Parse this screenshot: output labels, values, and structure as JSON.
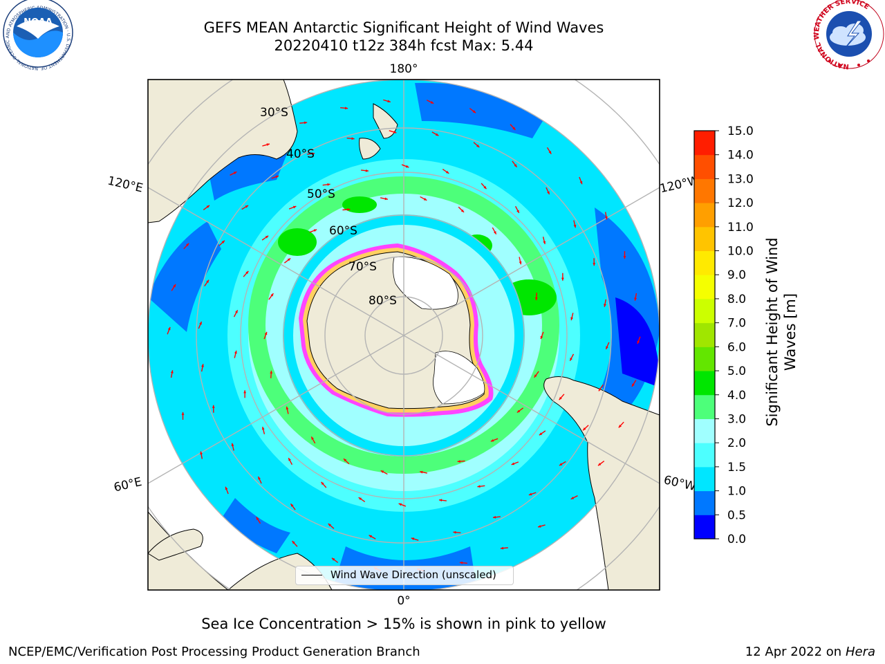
{
  "header": {
    "title_line1": "GEFS MEAN Antarctic Significant Height of Wind Waves",
    "title_line2": "20220410 t12z 384h fcst   Max: 5.44"
  },
  "logos": {
    "noaa_text": "NOAA",
    "noaa_ring_text": "NATIONAL OCEANIC AND ATMOSPHERIC ADMINISTRATION · U.S. DEPARTMENT OF COMMERCE",
    "nws_ring_text": "NATIONAL WEATHER SERVICE"
  },
  "map": {
    "projection": "south-polar-stereographic",
    "longitude_labels": {
      "top": "180°",
      "bottom": "0°",
      "upper_left": "120°E",
      "upper_right": "120°W",
      "lower_left": "60°E",
      "lower_right": "60°W"
    },
    "latitude_labels": [
      "30°S",
      "40°S",
      "50°S",
      "60°S",
      "70°S",
      "80°S"
    ],
    "legend_label": "Wind Wave Direction (unscaled)",
    "colors": {
      "land": "#efebd8",
      "sea_ice_white": "#ffffff",
      "sea_ice_edge": "#ff44ff",
      "arrow": "#ff0000",
      "gridline": "#b4b4b4"
    }
  },
  "colorbar": {
    "label": "Significant Height of Wind Waves [m]",
    "ticks": [
      "0.0",
      "0.5",
      "1.0",
      "1.5",
      "2.0",
      "3.0",
      "4.0",
      "5.0",
      "6.0",
      "7.0",
      "8.0",
      "9.0",
      "10.0",
      "11.0",
      "12.0",
      "13.0",
      "14.0",
      "15.0"
    ],
    "colors": [
      "#0000ff",
      "#0078ff",
      "#00e6ff",
      "#4dffff",
      "#a0ffff",
      "#4dff7a",
      "#00e600",
      "#63e600",
      "#a0e600",
      "#ccff00",
      "#f5ff00",
      "#ffea00",
      "#ffc400",
      "#ff9f00",
      "#ff7700",
      "#ff4f00",
      "#ff1e00"
    ]
  },
  "footer": {
    "note": "Sea Ice Concentration > 15% is shown in pink to yellow",
    "left": "NCEP/EMC/Verification Post Processing Product Generation Branch",
    "right_date": "12 Apr 2022 on",
    "right_host": "Hera"
  }
}
